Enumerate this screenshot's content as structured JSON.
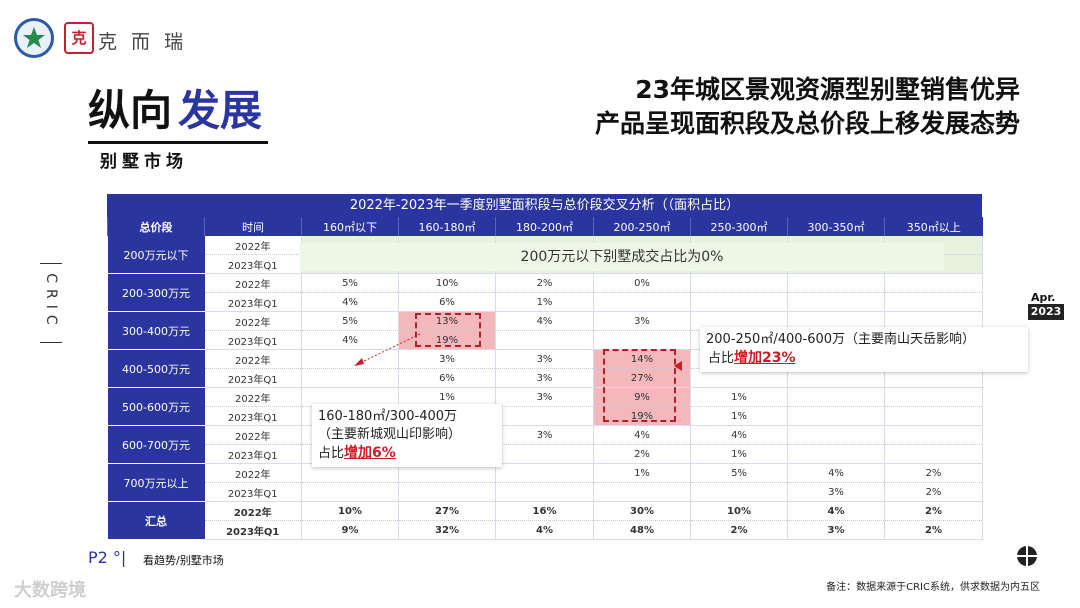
{
  "brand": {
    "name": "克 而 瑞",
    "seal": "克"
  },
  "section": {
    "title_a": "纵向",
    "title_b": "发展",
    "subtitle": "别墅市场"
  },
  "headline": {
    "line1": "23年城区景观资源型别墅销售优异",
    "line2": "产品呈现面积段及总价段上移发展态势"
  },
  "side_label": "CRIC",
  "date_tag": {
    "month": "Apr.",
    "year": "2023"
  },
  "table": {
    "title": "2022年-2023年一季度别墅面积段与总价段交叉分析（（面积占比）",
    "headers": [
      "总价段",
      "时间",
      "160㎡以下",
      "160-180㎡",
      "180-200㎡",
      "200-250㎡",
      "250-300㎡",
      "300-350㎡",
      "350㎡以上"
    ],
    "bands": [
      {
        "label": "200万元以下",
        "rows": [
          {
            "year": "2022年",
            "cells": [
              "",
              "",
              "",
              "",
              "",
              "",
              ""
            ]
          },
          {
            "year": "2023年Q1",
            "cells": [
              "",
              "",
              "",
              "",
              "",
              "",
              ""
            ]
          }
        ]
      },
      {
        "label": "200-300万元",
        "rows": [
          {
            "year": "2022年",
            "cells": [
              "5%",
              "10%",
              "2%",
              "0%",
              "",
              "",
              ""
            ]
          },
          {
            "year": "2023年Q1",
            "cells": [
              "4%",
              "6%",
              "1%",
              "",
              "",
              "",
              ""
            ]
          }
        ]
      },
      {
        "label": "300-400万元",
        "rows": [
          {
            "year": "2022年",
            "cells": [
              "5%",
              "13%",
              "4%",
              "3%",
              "",
              "",
              ""
            ]
          },
          {
            "year": "2023年Q1",
            "cells": [
              "4%",
              "19%",
              "",
              "",
              "",
              "",
              ""
            ]
          }
        ]
      },
      {
        "label": "400-500万元",
        "rows": [
          {
            "year": "2022年",
            "cells": [
              "",
              "3%",
              "3%",
              "14%",
              "",
              "",
              ""
            ]
          },
          {
            "year": "2023年Q1",
            "cells": [
              "",
              "6%",
              "3%",
              "27%",
              "",
              "",
              ""
            ]
          }
        ]
      },
      {
        "label": "500-600万元",
        "rows": [
          {
            "year": "2022年",
            "cells": [
              "",
              "1%",
              "3%",
              "9%",
              "1%",
              "",
              ""
            ]
          },
          {
            "year": "2023年Q1",
            "cells": [
              "",
              "",
              "",
              "19%",
              "1%",
              "",
              ""
            ]
          }
        ]
      },
      {
        "label": "600-700万元",
        "rows": [
          {
            "year": "2022年",
            "cells": [
              "",
              "",
              "3%",
              "4%",
              "4%",
              "",
              ""
            ]
          },
          {
            "year": "2023年Q1",
            "cells": [
              "",
              "",
              "",
              "2%",
              "1%",
              "",
              ""
            ]
          }
        ]
      },
      {
        "label": "700万元以上",
        "rows": [
          {
            "year": "2022年",
            "cells": [
              "",
              "",
              "",
              "1%",
              "5%",
              "4%",
              "2%"
            ]
          },
          {
            "year": "2023年Q1",
            "cells": [
              "",
              "",
              "",
              "",
              "",
              "3%",
              "2%"
            ]
          }
        ]
      },
      {
        "label": "汇总",
        "total": true,
        "rows": [
          {
            "year": "2022年",
            "cells": [
              "10%",
              "27%",
              "16%",
              "30%",
              "10%",
              "4%",
              "2%"
            ]
          },
          {
            "year": "2023年Q1",
            "cells": [
              "9%",
              "32%",
              "4%",
              "48%",
              "2%",
              "3%",
              "2%"
            ]
          }
        ]
      }
    ],
    "band0_note": "200万元以下别墅成交占比为0%"
  },
  "callouts": {
    "left": {
      "line1": "160-180㎡/300-400万",
      "line2": "（主要新城观山印影响）",
      "prefix": "占比",
      "highlight": "增加6%"
    },
    "right": {
      "line1": "200-250㎡/400-600万（主要南山天岳影响）",
      "prefix": "占比",
      "highlight": "增加23%"
    }
  },
  "footer": {
    "page": "P2 °|",
    "label": "看趋势/别墅市场",
    "note": "备注：数据来源于CRIC系统，供求数据为内五区",
    "watermark": "大数跨境"
  },
  "colors": {
    "primary": "#2b35a0",
    "highlight_red": "#d01b22",
    "cell_highlight": "#f2b8bc"
  },
  "icons": {
    "logo": "star-emblem-icon",
    "corner": "quadrant-circle-icon"
  }
}
